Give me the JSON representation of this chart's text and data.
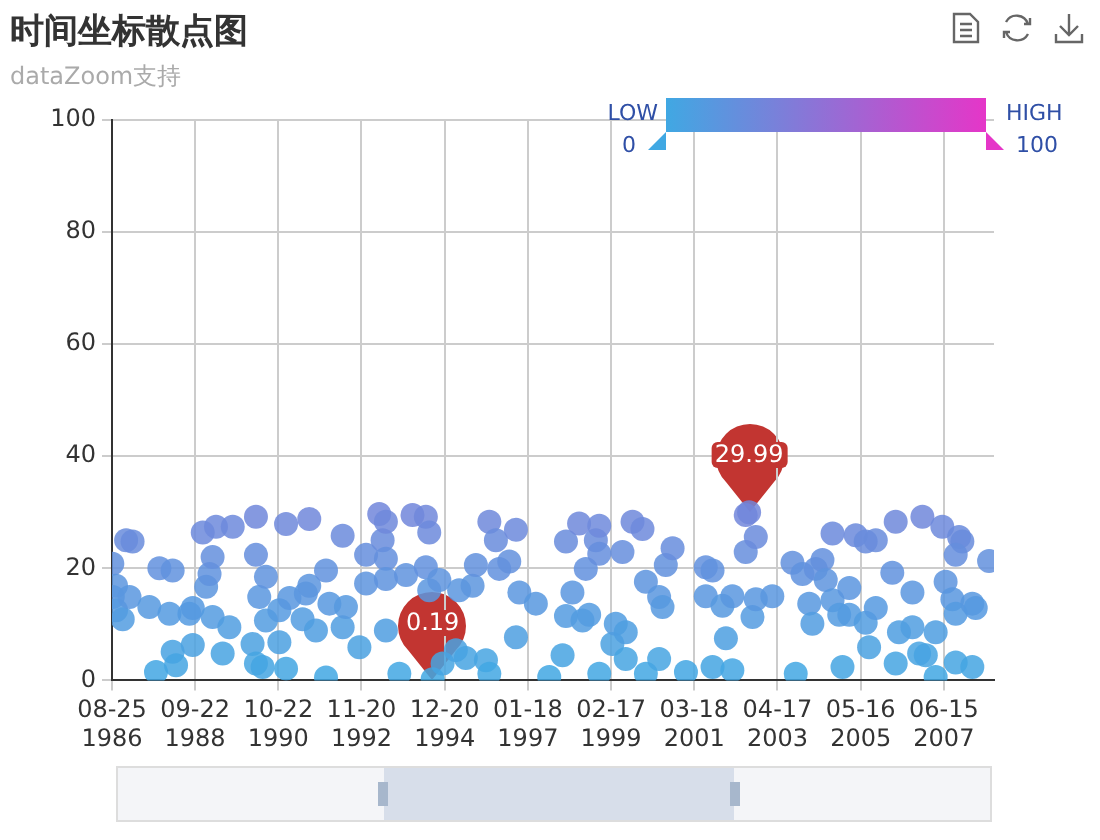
{
  "chart_data": {
    "type": "scatter",
    "title": "时间坐标散点图",
    "subtitle": "dataZoom支持",
    "xlim": [
      "1986-08-25",
      "2008-09-15"
    ],
    "xticks": [
      {
        "value": "1986-08-25",
        "label": "08-25\n1986"
      },
      {
        "value": "1988-09-22",
        "label": "09-22\n1988"
      },
      {
        "value": "1990-10-22",
        "label": "10-22\n1990"
      },
      {
        "value": "1992-11-20",
        "label": "11-20\n1992"
      },
      {
        "value": "1994-12-20",
        "label": "12-20\n1994"
      },
      {
        "value": "1997-01-18",
        "label": "01-18\n1997"
      },
      {
        "value": "1999-02-17",
        "label": "02-17\n1999"
      },
      {
        "value": "2001-03-18",
        "label": "03-18\n2001"
      },
      {
        "value": "2003-04-17",
        "label": "04-17\n2003"
      },
      {
        "value": "2005-05-16",
        "label": "05-16\n2005"
      },
      {
        "value": "2007-06-15",
        "label": "06-15\n2007"
      }
    ],
    "ylim": [
      0,
      100
    ],
    "yticks": [
      0,
      20,
      40,
      60,
      80,
      100
    ],
    "grid": true,
    "legend": false,
    "marker": "circle",
    "annotations": [
      "LOW",
      "HIGH",
      "0",
      "100",
      {
        "text": "29.99",
        "x": "2002-08",
        "y": 29.99
      },
      {
        "text": "0.19",
        "x": "1994-09",
        "y": 0.19
      }
    ],
    "x": [
      "1986-08-28",
      "1986-10",
      "1986-09",
      "1986-10",
      "1986-12",
      "1987-02",
      "1987-01",
      "1987-03",
      "1987-10",
      "1987-08",
      "1987-11",
      "1988-03",
      "1988-02",
      "1988-03",
      "1988-04",
      "1988-08",
      "1988-09",
      "1988-09",
      "1988-12",
      "1989-01",
      "1989-02",
      "1989-03",
      "1989-04",
      "1989-03",
      "1989-06",
      "1989-08",
      "1989-09",
      "1990-04",
      "1990-04",
      "1990-03",
      "1990-04",
      "1990-05",
      "1990-06",
      "1990-07",
      "1990-07",
      "1990-11",
      "1990-11",
      "1991-01",
      "1991-01",
      "1991-02",
      "1991-06",
      "1991-07",
      "1991-08",
      "1991-08",
      "1991-10",
      "1992-01",
      "1992-01",
      "1992-02",
      "1992-06",
      "1992-06",
      "1992-07",
      "1992-11",
      "1993-01",
      "1993-01",
      "1993-05",
      "1993-06",
      "1993-07",
      "1993-07",
      "1993-07",
      "1993-07",
      "1993-11",
      "1994-01",
      "1994-03",
      "1994-07",
      "1994-07",
      "1994-08",
      "1994-09",
      "1994-08",
      "1994-11",
      "1994-12",
      "1995-04",
      "1995-05",
      "1995-07",
      "1995-09",
      "1995-10",
      "1996-01",
      "1996-02",
      "1996-02",
      "1996-04",
      "1996-05",
      "1996-08",
      "1996-10",
      "1996-10",
      "1996-11",
      "1997-04",
      "1997-08",
      "1997-12",
      "1998-01",
      "1998-01",
      "1998-03",
      "1998-05",
      "1998-06",
      "1998-07",
      "1998-08",
      "1998-10",
      "1998-11",
      "1998-11",
      "1998-11",
      "1999-03",
      "1999-04",
      "1999-06",
      "1999-07",
      "1999-07",
      "1999-09",
      "1999-12",
      "2000-01",
      "2000-01",
      "2000-05",
      "2000-06",
      "2000-05",
      "2000-07",
      "2000-09",
      "2001-01",
      "2001-07",
      "2001-09",
      "2001-07",
      "2001-09",
      "2001-12",
      "2002-01",
      "2002-03",
      "2002-03",
      "2002-07",
      "2002-07",
      "2002-08",
      "2002-10",
      "2002-09",
      "2002-10",
      "2003-03",
      "2003-10",
      "2003-09",
      "2003-12",
      "2004-02",
      "2004-03",
      "2004-04",
      "2004-06",
      "2004-07",
      "2004-09",
      "2004-09",
      "2004-11",
      "2004-12",
      "2005-02",
      "2005-02",
      "2005-04",
      "2005-07",
      "2005-07",
      "2005-08",
      "2005-10",
      "2005-10",
      "2006-03",
      "2006-04",
      "2006-04",
      "2006-05",
      "2006-09",
      "2006-09",
      "2006-11",
      "2006-12",
      "2007-01",
      "2007-04",
      "2007-04",
      "2007-06",
      "2007-07",
      "2007-09",
      "2007-10",
      "2007-10",
      "2007-11",
      "2007-12",
      "2007-10",
      "2008-03",
      "2008-04",
      "2008-03",
      "2008-08"
    ],
    "values": [
      20.8,
      16.9,
      14.9,
      12.5,
      10.9,
      14.9,
      25.0,
      24.8,
      1.5,
      13.1,
      20.0,
      19.6,
      11.9,
      5.1,
      2.7,
      11.9,
      12.9,
      6.3,
      26.4,
      16.7,
      19.0,
      22.0,
      27.4,
      11.3,
      4.8,
      9.5,
      27.4,
      29.2,
      22.4,
      6.5,
      3.0,
      14.9,
      2.4,
      18.5,
      10.7,
      12.5,
      6.8,
      27.9,
      2.1,
      14.7,
      10.9,
      15.5,
      28.8,
      16.9,
      8.9,
      19.6,
      0.5,
      13.7,
      25.8,
      9.5,
      13.1,
      5.9,
      22.4,
      17.3,
      29.7,
      25.0,
      21.7,
      28.3,
      18.1,
      8.9,
      1.2,
      18.8,
      29.5,
      20.2,
      29.2,
      26.4,
      0.19,
      16.1,
      17.9,
      3.0,
      5.4,
      16.1,
      4.0,
      16.9,
      20.6,
      3.6,
      28.3,
      1.2,
      25.0,
      19.9,
      21.2,
      7.7,
      26.9,
      15.7,
      13.7,
      0.6,
      4.5,
      11.5,
      24.8,
      15.7,
      28.0,
      10.7,
      19.9,
      11.7,
      25.0,
      27.6,
      22.6,
      1.2,
      6.5,
      10.1,
      22.9,
      3.8,
      8.6,
      28.3,
      27.0,
      17.6,
      1.2,
      14.9,
      13.1,
      3.8,
      20.6,
      23.6,
      1.5,
      20.2,
      19.6,
      15.0,
      2.4,
      13.3,
      7.5,
      1.8,
      15.0,
      22.9,
      29.5,
      29.99,
      25.6,
      11.3,
      14.5,
      15.0,
      1.2,
      21.0,
      19.0,
      13.7,
      10.1,
      19.9,
      21.5,
      17.9,
      14.3,
      26.2,
      11.7,
      2.4,
      16.5,
      11.7,
      25.9,
      24.8,
      10.3,
      5.9,
      25.0,
      12.9,
      19.2,
      3.0,
      28.3,
      8.6,
      15.7,
      9.5,
      4.8,
      29.2,
      4.5,
      8.6,
      0.6,
      27.4,
      17.6,
      14.5,
      11.9,
      3.2,
      25.6,
      24.8,
      22.4,
      13.7,
      12.9,
      2.4,
      21.3
    ]
  }
}
